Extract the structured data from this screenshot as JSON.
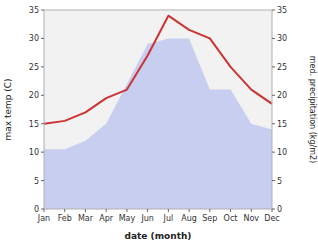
{
  "chart_data": {
    "type": "line",
    "categories": [
      "Jan",
      "Feb",
      "Mar",
      "Apr",
      "May",
      "Jun",
      "Jul",
      "Aug",
      "Sep",
      "Oct",
      "Nov",
      "Dec"
    ],
    "series": [
      {
        "type": "area",
        "color": "#c8cef0",
        "axis": "y2",
        "values": [
          10.5,
          10.5,
          12,
          15,
          22,
          29,
          30,
          30,
          21,
          21,
          15,
          14
        ]
      },
      {
        "type": "line",
        "color": "#cc3333",
        "values": [
          15,
          15.5,
          17,
          19.5,
          21,
          27,
          34,
          31.5,
          30,
          25,
          21,
          18.5
        ]
      }
    ],
    "ylim": [
      0,
      35
    ],
    "yticks": [
      0,
      5,
      10,
      15,
      20,
      25,
      30,
      35
    ],
    "y2lim": [
      0,
      35
    ],
    "y2ticks": [
      0,
      5,
      10,
      15,
      20,
      25,
      30,
      35
    ],
    "ylabel": "max temp (C)",
    "y2label": "med. precipitation (kg/m2)",
    "xlabel": "date (month)",
    "grid": false
  }
}
